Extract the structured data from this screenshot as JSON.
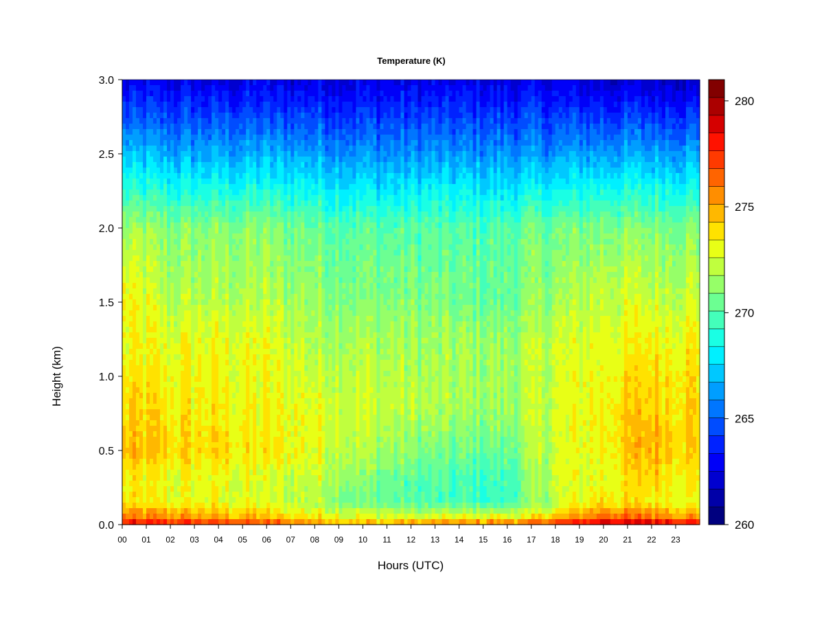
{
  "chart_data": {
    "type": "heatmap",
    "title": "Temperature (K)",
    "xlabel": "Hours (UTC)",
    "ylabel": "Height (km)",
    "x_ticks": [
      "00",
      "01",
      "02",
      "03",
      "04",
      "05",
      "06",
      "07",
      "08",
      "09",
      "10",
      "11",
      "12",
      "13",
      "14",
      "15",
      "16",
      "17",
      "18",
      "19",
      "20",
      "21",
      "22",
      "23"
    ],
    "x_tick_values": [
      0,
      1,
      2,
      3,
      4,
      5,
      6,
      7,
      8,
      9,
      10,
      11,
      12,
      13,
      14,
      15,
      16,
      17,
      18,
      19,
      20,
      21,
      22,
      23
    ],
    "xlim": [
      0,
      24
    ],
    "y_ticks": [
      "0.0",
      "0.5",
      "1.0",
      "1.5",
      "2.0",
      "2.5",
      "3.0"
    ],
    "y_tick_values": [
      0,
      0.5,
      1.0,
      1.5,
      2.0,
      2.5,
      3.0
    ],
    "ylim": [
      0,
      3
    ],
    "colorbar": {
      "min": 260,
      "max": 281,
      "ticks": [
        "260",
        "265",
        "270",
        "275",
        "280"
      ],
      "tick_values": [
        260,
        265,
        270,
        275,
        280
      ],
      "colors": [
        "#00007f",
        "#0000a8",
        "#0000d0",
        "#0000f8",
        "#0022ff",
        "#004cff",
        "#0076ff",
        "#009eff",
        "#00c8ff",
        "#00f0ff",
        "#1affe4",
        "#44ffba",
        "#6cff92",
        "#96ff68",
        "#c0ff3e",
        "#e8ff16",
        "#ffe200",
        "#ffb800",
        "#ff8e00",
        "#ff6400",
        "#ff3a00",
        "#ff1200",
        "#d50000",
        "#ab0000",
        "#820000"
      ]
    },
    "temperature_grid": {
      "hours": [
        0,
        2,
        4,
        6,
        8,
        10,
        12,
        14,
        16,
        17,
        18,
        20,
        22,
        24
      ],
      "heights_km": [
        0,
        0.05,
        0.15,
        0.3,
        0.5,
        0.8,
        1.2,
        1.5,
        2.0,
        2.5,
        3.0
      ],
      "values_K": [
        [
          278.5,
          276.0,
          273.5,
          273.5,
          274.5,
          274.0,
          273.0,
          273.5,
          271.5,
          267.0,
          262.5
        ],
        [
          278.0,
          275.5,
          273.0,
          273.0,
          274.0,
          273.5,
          273.0,
          272.0,
          271.0,
          266.5,
          262.5
        ],
        [
          278.0,
          275.0,
          273.0,
          273.0,
          274.0,
          273.5,
          273.0,
          272.0,
          271.0,
          266.5,
          262.5
        ],
        [
          277.5,
          274.5,
          272.5,
          272.5,
          273.5,
          273.0,
          273.0,
          272.0,
          271.0,
          266.5,
          262.5
        ],
        [
          276.0,
          273.5,
          272.0,
          272.5,
          273.0,
          273.0,
          272.0,
          271.5,
          270.5,
          266.5,
          262.5
        ],
        [
          275.0,
          273.0,
          270.5,
          271.0,
          272.0,
          272.5,
          272.0,
          271.0,
          270.0,
          266.0,
          262.5
        ],
        [
          275.5,
          272.5,
          270.0,
          270.0,
          271.0,
          272.0,
          271.5,
          271.0,
          270.0,
          266.0,
          262.5
        ],
        [
          276.0,
          273.0,
          269.5,
          269.5,
          270.5,
          271.5,
          271.5,
          270.5,
          270.0,
          266.0,
          262.5
        ],
        [
          276.5,
          273.0,
          269.5,
          269.5,
          270.5,
          271.5,
          271.5,
          270.5,
          270.0,
          266.0,
          262.5
        ],
        [
          277.0,
          273.5,
          271.0,
          271.0,
          271.5,
          272.0,
          272.0,
          271.0,
          270.5,
          266.0,
          262.5
        ],
        [
          278.0,
          274.5,
          272.0,
          272.5,
          272.5,
          272.5,
          272.5,
          271.5,
          270.5,
          266.0,
          262.5
        ],
        [
          280.0,
          276.5,
          274.0,
          273.0,
          273.5,
          273.5,
          273.0,
          272.5,
          271.0,
          266.5,
          262.0
        ],
        [
          279.5,
          276.0,
          273.5,
          274.0,
          275.0,
          274.5,
          273.5,
          272.5,
          271.0,
          266.5,
          262.0
        ],
        [
          279.0,
          275.5,
          273.0,
          273.5,
          274.0,
          274.0,
          273.5,
          272.5,
          271.0,
          266.5,
          262.0
        ]
      ]
    }
  }
}
